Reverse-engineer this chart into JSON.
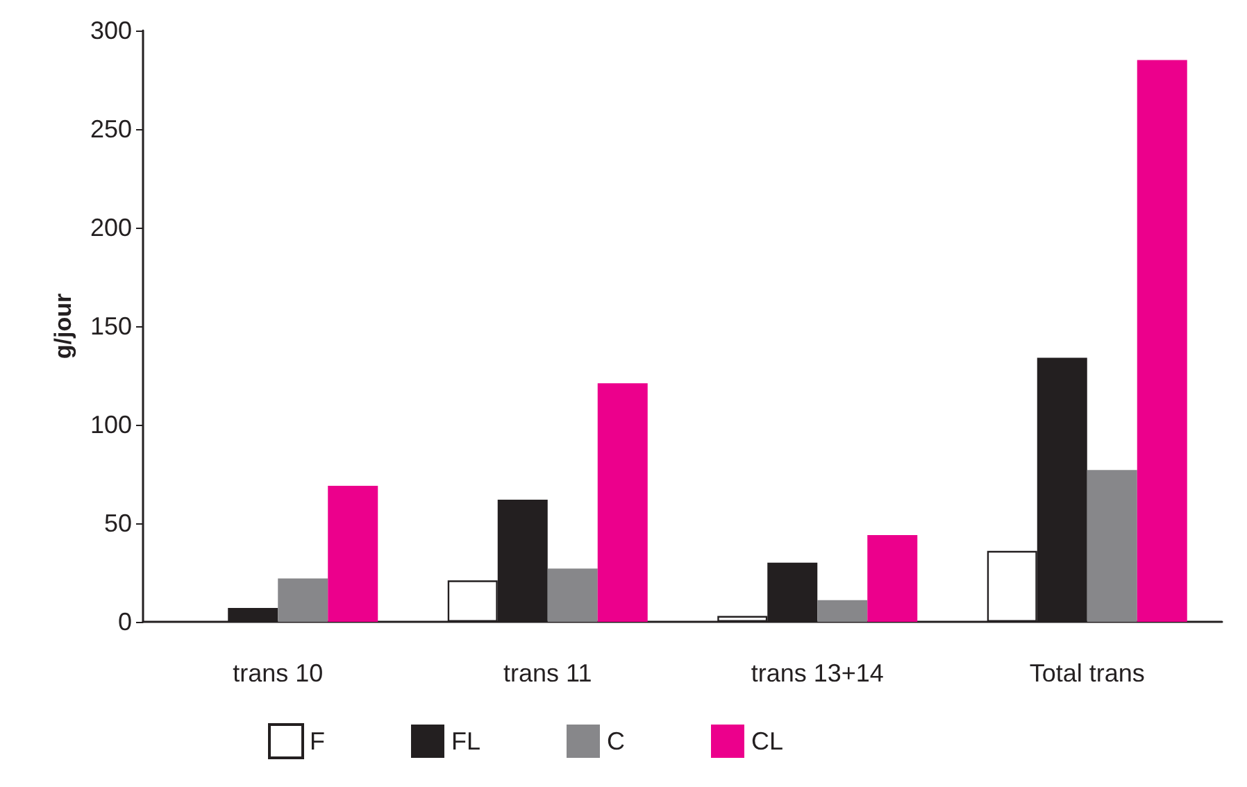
{
  "chart_data": {
    "type": "bar",
    "ylabel": "g/jour",
    "categories": [
      "trans 10",
      "trans 11",
      "trans 13+14",
      "Total trans"
    ],
    "series": [
      {
        "name": "F",
        "color": "#ffffff",
        "values": [
          null,
          21,
          3,
          36
        ]
      },
      {
        "name": "FL",
        "color": "#231f20",
        "values": [
          7,
          62,
          30,
          134
        ]
      },
      {
        "name": "C",
        "color": "#87878a",
        "values": [
          22,
          27,
          11,
          77
        ]
      },
      {
        "name": "CL",
        "color": "#ec008c",
        "values": [
          69,
          121,
          44,
          285
        ]
      }
    ],
    "ylim": [
      0,
      300
    ],
    "yticks": [
      0,
      50,
      100,
      150,
      200,
      250,
      300
    ],
    "grid": false,
    "legend": "bottom"
  }
}
